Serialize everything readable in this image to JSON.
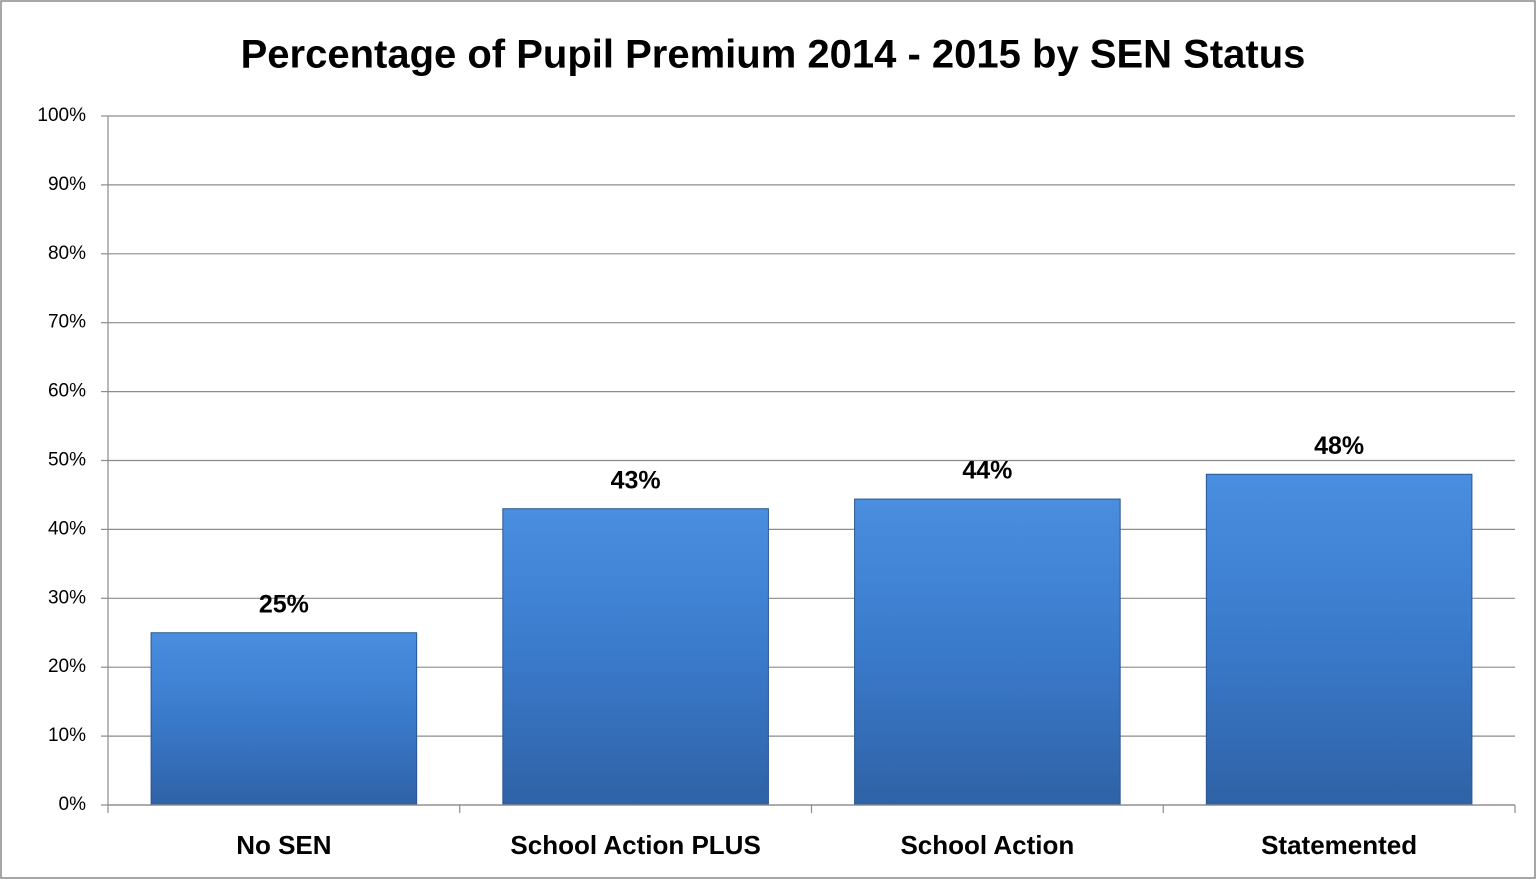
{
  "chart_data": {
    "type": "bar",
    "title": "Percentage of Pupil Premium 2014 - 2015 by SEN Status",
    "categories": [
      "No SEN",
      "School Action PLUS",
      "School Action",
      "Statemented"
    ],
    "values": [
      25,
      43,
      44.4,
      48
    ],
    "value_labels": [
      "25%",
      "43%",
      "44%",
      "48%"
    ],
    "color": "#3d7cc9",
    "ylim": [
      0,
      100
    ],
    "yticks": [
      {
        "value": 0,
        "label": "0%"
      },
      {
        "value": 10,
        "label": "10%"
      },
      {
        "value": 20,
        "label": "20%"
      },
      {
        "value": 30,
        "label": "30%"
      },
      {
        "value": 40,
        "label": "40%"
      },
      {
        "value": 50,
        "label": "50%"
      },
      {
        "value": 60,
        "label": "60%"
      },
      {
        "value": 70,
        "label": "70%"
      },
      {
        "value": 80,
        "label": "80%"
      },
      {
        "value": 90,
        "label": "90%"
      },
      {
        "value": 100,
        "label": "100%"
      }
    ],
    "grid": true
  }
}
